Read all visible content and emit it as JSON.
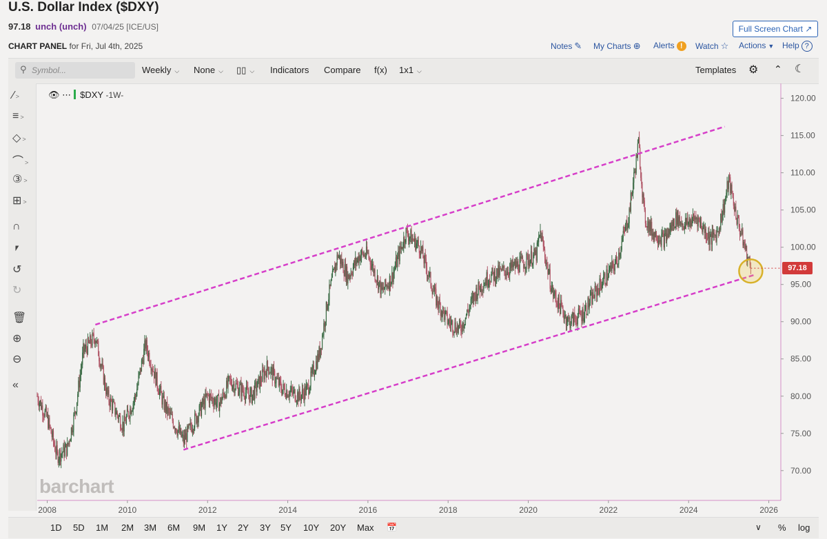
{
  "header": {
    "title": "U.S. Dollar Index ($DXY)",
    "price": "97.18",
    "change": "unch (unch)",
    "meta": "07/04/25 [ICE/US]",
    "panel_label": "CHART PANEL",
    "panel_date": "for Fri, Jul 4th, 2025",
    "fullscreen_label": "Full Screen Chart"
  },
  "links": {
    "notes": "Notes",
    "my_charts": "My Charts",
    "alerts": "Alerts",
    "watch": "Watch",
    "actions": "Actions",
    "help": "Help"
  },
  "toolbar": {
    "symbol_placeholder": "Symbol...",
    "interval": "Weekly",
    "none": "None",
    "indicators": "Indicators",
    "compare": "Compare",
    "fx": "f(x)",
    "layout": "1x1",
    "templates": "Templates"
  },
  "legend": {
    "symbol": "$DXY",
    "timeframe": "-1W-"
  },
  "watermark": "barchart",
  "ranges": [
    "1D",
    "5D",
    "1M",
    "2M",
    "3M",
    "6M",
    "9M",
    "1Y",
    "2Y",
    "3Y",
    "5Y",
    "10Y",
    "20Y",
    "Max"
  ],
  "bottom_right": {
    "percent": "%",
    "log": "log"
  },
  "price_tag": "97.18",
  "colors": {
    "accent": "#2b63b5",
    "channel": "#d63ec9",
    "price_tag": "#d23a3a",
    "candle_up": "#3b6b45",
    "candle_down": "#b05566"
  },
  "icons": {
    "notes": "pencil-square-icon",
    "my_charts": "plus-circle-icon",
    "alerts": "exclamation-circle-icon",
    "watch": "star-icon",
    "help": "question-circle-icon",
    "fullscreen": "arrow-diagonal-icon"
  },
  "chart_data": {
    "type": "candlestick",
    "symbol": "$DXY",
    "interval": "1W",
    "y_axis": {
      "min": 66,
      "max": 122,
      "ticks": [
        "70.00",
        "75.00",
        "80.00",
        "85.00",
        "90.00",
        "95.00",
        "100.00",
        "105.00",
        "110.00",
        "115.00",
        "120.00"
      ],
      "side": "right"
    },
    "x_axis": {
      "min": 2007.75,
      "max": 2026.3,
      "ticks": [
        "2008",
        "2010",
        "2012",
        "2014",
        "2016",
        "2018",
        "2020",
        "2022",
        "2024",
        "2026"
      ]
    },
    "last_price": 97.18,
    "series": [
      {
        "x": [
          2007.75,
          2008.0,
          2008.25,
          2008.5,
          2008.7,
          2008.9,
          2009.2,
          2009.5,
          2009.9,
          2010.2,
          2010.45,
          2010.9,
          2011.2,
          2011.4,
          2011.7,
          2012.0,
          2012.3,
          2012.55,
          2012.8,
          2013.1,
          2013.5,
          2013.85,
          2014.3,
          2014.5,
          2014.8,
          2015.0,
          2015.25,
          2015.5,
          2015.8,
          2016.0,
          2016.35,
          2016.6,
          2016.95,
          2017.3,
          2017.7,
          2018.0,
          2018.3,
          2018.7,
          2019.0,
          2019.5,
          2019.9,
          2020.2,
          2020.3,
          2020.6,
          2021.0,
          2021.35,
          2021.8,
          2022.2,
          2022.5,
          2022.75,
          2022.9,
          2023.1,
          2023.4,
          2023.7,
          2023.9,
          2024.2,
          2024.55,
          2024.72,
          2024.9,
          2025.0,
          2025.2,
          2025.45,
          2025.55
        ],
        "close": [
          80,
          77,
          72,
          73,
          78,
          86,
          88,
          80,
          76,
          80,
          87,
          79,
          76,
          74,
          77,
          80,
          79,
          82,
          81,
          80,
          84,
          81,
          80,
          81,
          86,
          93,
          99,
          96,
          99,
          99,
          94,
          96,
          102,
          100,
          93,
          90,
          89,
          94,
          96,
          97,
          98,
          99,
          102,
          94,
          90,
          91,
          95,
          98,
          104,
          114,
          104,
          102,
          101,
          104,
          103,
          104,
          101,
          102,
          106,
          109,
          104,
          99,
          97.18
        ]
      }
    ],
    "channel": {
      "upper": {
        "from": {
          "x": 2009.2,
          "y": 89.6
        },
        "to": {
          "x": 2024.9,
          "y": 116.2
        }
      },
      "lower": {
        "from": {
          "x": 2011.4,
          "y": 72.8
        },
        "to": {
          "x": 2025.65,
          "y": 96.3
        }
      }
    },
    "highlight": {
      "x": 2025.55,
      "y": 96.8
    }
  }
}
